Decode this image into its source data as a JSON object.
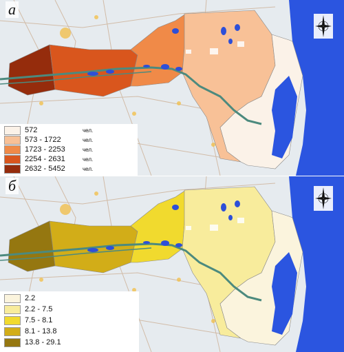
{
  "panel_a": {
    "letter": "а",
    "legend": [
      {
        "range": "572",
        "unit": "чел.",
        "color": "#fbf2e8"
      },
      {
        "range": "573 - 1722",
        "unit": "чел.",
        "color": "#f8c197"
      },
      {
        "range": "1723 - 2253",
        "unit": "чел.",
        "color": "#f08a48"
      },
      {
        "range": "2254 - 2631",
        "unit": "чел.",
        "color": "#d9561d"
      },
      {
        "range": "2632 - 5452",
        "unit": "чел.",
        "color": "#952c0c"
      }
    ],
    "zone_colors": [
      "#952c0c",
      "#d9561d",
      "#f08a48",
      "#f8c197",
      "#fbf2e8"
    ]
  },
  "panel_b": {
    "letter": "б",
    "legend": [
      {
        "range": "2.2",
        "color": "#fbf4dd"
      },
      {
        "range": "2.2 - 7.5",
        "color": "#f8ec9c"
      },
      {
        "range": "7.5 - 8.1",
        "color": "#f1da2e"
      },
      {
        "range": "8.1 - 13.8",
        "color": "#d2ad18"
      },
      {
        "range": "13.8 - 29.1",
        "color": "#957710"
      }
    ],
    "zone_colors": [
      "#957710",
      "#d2ad18",
      "#f1da2e",
      "#f8ec9c",
      "#fbf4dd"
    ]
  },
  "colors": {
    "sea": "#2b55e0",
    "land": "#e6ebef",
    "river": "#4c8a7e",
    "lakes": "#2d4fd8"
  },
  "icons": [
    "compass-rose-icon"
  ]
}
